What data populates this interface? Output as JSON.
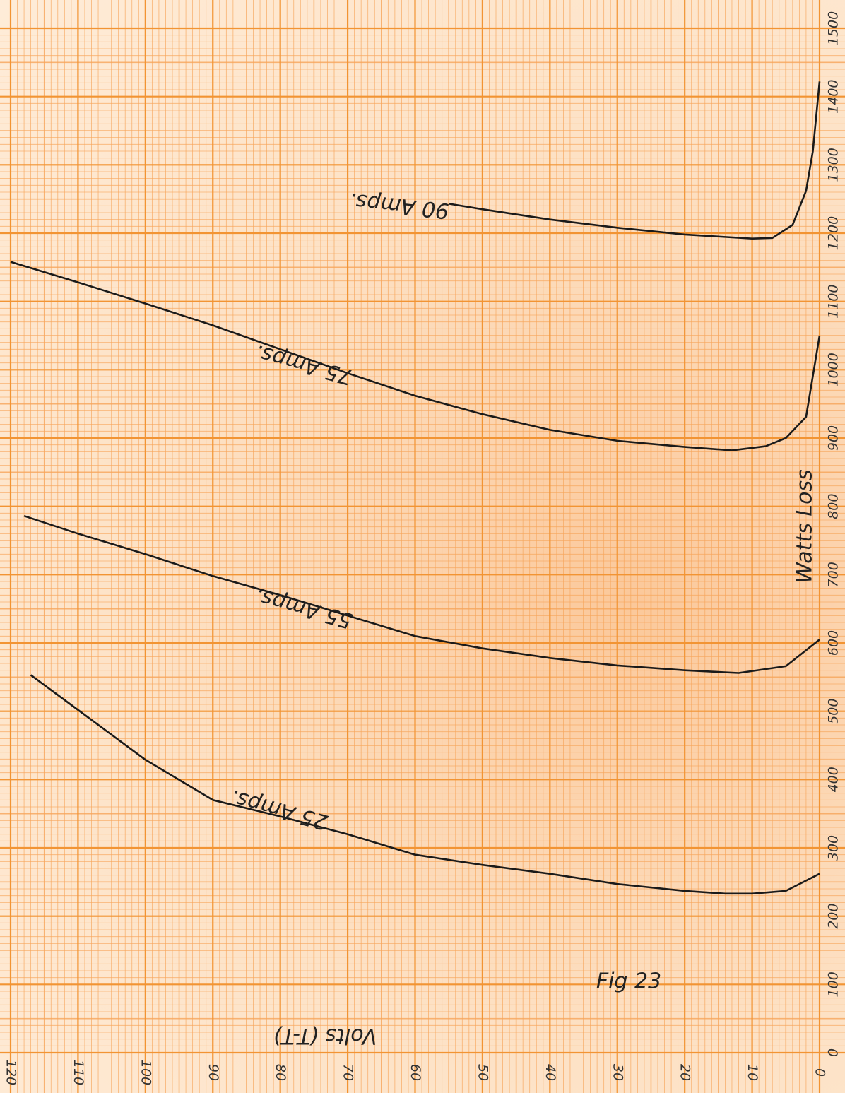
{
  "chart_data": {
    "type": "line",
    "x_label": "Volts (T-T)",
    "y_label": "Watts Loss",
    "annotation": "Fig 23",
    "xlim": [
      120,
      0
    ],
    "xticks": [
      120,
      110,
      100,
      90,
      80,
      70,
      60,
      50,
      40,
      30,
      20,
      10,
      0
    ],
    "ylim": [
      0,
      1500
    ],
    "yticks": [
      0,
      100,
      200,
      300,
      400,
      500,
      600,
      700,
      800,
      900,
      1000,
      1100,
      1200,
      1300,
      1400,
      1500
    ],
    "grid": true,
    "color": "#1a1a1a",
    "series": [
      {
        "name": "25 Amps.",
        "x": [
          117,
          100,
          90,
          80,
          70,
          60,
          50,
          40,
          30,
          20,
          14,
          10,
          5,
          0
        ],
        "values": [
          553,
          429,
          370,
          346,
          320,
          290,
          275,
          262,
          247,
          237,
          233,
          233,
          237,
          262
        ]
      },
      {
        "name": "55 Amps.",
        "x": [
          118,
          110,
          100,
          90,
          80,
          70,
          60,
          50,
          40,
          30,
          20,
          12,
          5,
          0
        ],
        "values": [
          786,
          760,
          730,
          698,
          670,
          640,
          610,
          592,
          578,
          567,
          560,
          556,
          566,
          605
        ]
      },
      {
        "name": "75 Amps.",
        "x": [
          120,
          110,
          100,
          90,
          80,
          70,
          60,
          50,
          40,
          30,
          20,
          13,
          8,
          5,
          2,
          0
        ],
        "values": [
          1158,
          1128,
          1097,
          1065,
          1030,
          995,
          962,
          935,
          912,
          896,
          887,
          882,
          888,
          900,
          931,
          1050
        ]
      },
      {
        "name": "90 Amps.",
        "x": [
          55,
          50,
          40,
          30,
          20,
          10,
          7,
          4,
          2,
          1,
          0
        ],
        "values": [
          1243,
          1235,
          1220,
          1208,
          1198,
          1192,
          1193,
          1212,
          1262,
          1320,
          1422
        ]
      }
    ]
  }
}
